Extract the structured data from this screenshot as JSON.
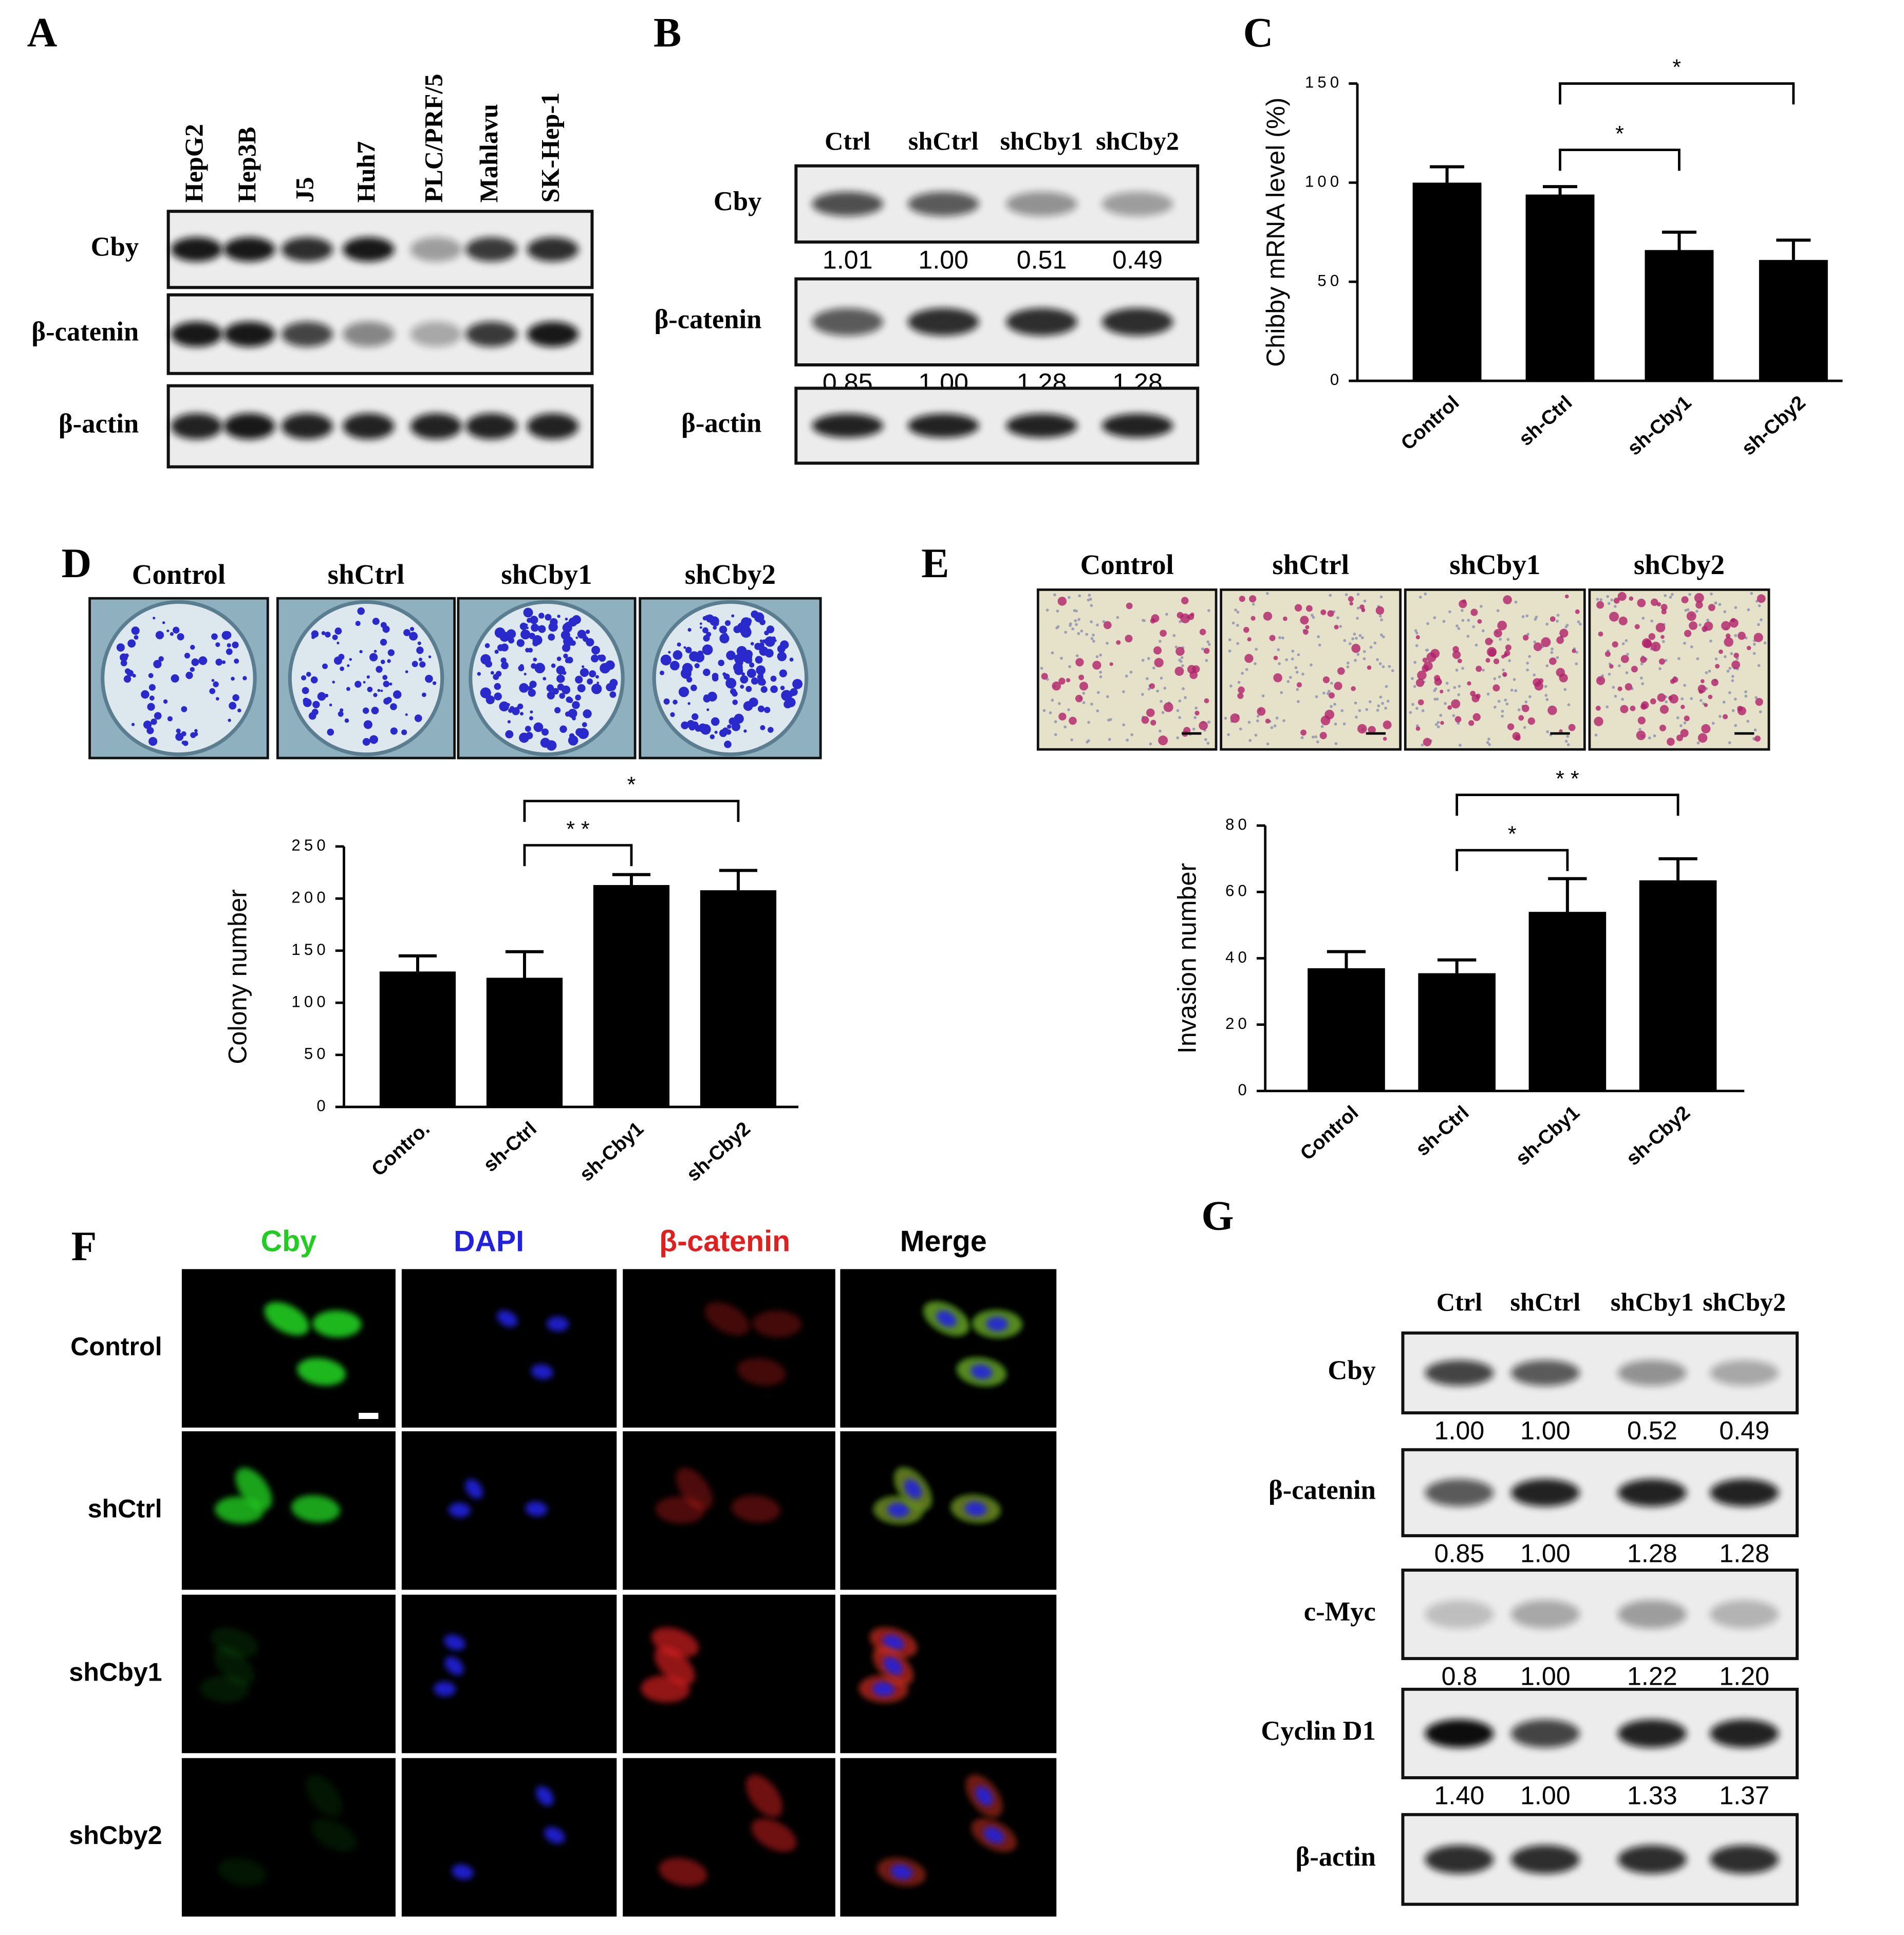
{
  "figure": {
    "A": {
      "label": "A",
      "lanes": [
        "HepG2",
        "Hep3B",
        "J5",
        "Huh7",
        "PLC/PRF/5",
        "Mahlavu",
        "SK-Hep-1"
      ],
      "rows": [
        "Cby",
        "β-catenin",
        "β-actin"
      ]
    },
    "B": {
      "label": "B",
      "lanes": [
        "Ctrl",
        "shCtrl",
        "shCby1",
        "shCby2"
      ],
      "rows": [
        {
          "name": "Cby",
          "quant": [
            "1.01",
            "1.00",
            "0.51",
            "0.49"
          ]
        },
        {
          "name": "β-catenin",
          "quant": [
            "0.85",
            "1.00",
            "1.28",
            "1.28"
          ]
        },
        {
          "name": "β-actin"
        }
      ]
    },
    "C": {
      "label": "C"
    },
    "D": {
      "label": "D",
      "conditions": [
        "Control",
        "shCtrl",
        "shCby1",
        "shCby2"
      ]
    },
    "E": {
      "label": "E",
      "conditions": [
        "Control",
        "shCtrl",
        "shCby1",
        "shCby2"
      ]
    },
    "F": {
      "label": "F",
      "channels": [
        {
          "name": "Cby",
          "color": "#22cc22"
        },
        {
          "name": "DAPI",
          "color": "#2222dd"
        },
        {
          "name": "β-catenin",
          "color": "#e02020"
        },
        {
          "name": "Merge",
          "color": "#000000"
        }
      ],
      "rows": [
        "Control",
        "shCtrl",
        "shCby1",
        "shCby2"
      ]
    },
    "G": {
      "label": "G",
      "lanes": [
        "Ctrl",
        "shCtrl",
        "shCby1",
        "shCby2"
      ],
      "rows": [
        {
          "name": "Cby",
          "quant": [
            "1.00",
            "1.00",
            "0.52",
            "0.49"
          ]
        },
        {
          "name": "β-catenin",
          "quant": [
            "0.85",
            "1.00",
            "1.28",
            "1.28"
          ]
        },
        {
          "name": "c-Myc",
          "quant": [
            "0.8",
            "1.00",
            "1.22",
            "1.20"
          ]
        },
        {
          "name": "Cyclin D1",
          "quant": [
            "1.40",
            "1.00",
            "1.33",
            "1.37"
          ]
        },
        {
          "name": "β-actin"
        }
      ]
    }
  },
  "chart_data": [
    {
      "type": "bar",
      "ylabel": "Chibby mRNA level (%)",
      "categories": [
        "Control",
        "sh-Ctrl",
        "sh-Cby1",
        "sh-Cby2"
      ],
      "values": [
        100,
        94,
        66,
        61
      ],
      "errors": [
        8,
        4,
        9,
        10
      ],
      "color": "#000000",
      "ylim": [
        0,
        150
      ],
      "yticks": [
        0,
        50,
        100,
        150
      ],
      "significance": [
        {
          "label": "*",
          "between": [
            "sh-Ctrl",
            "sh-Cby1"
          ]
        },
        {
          "label": "*",
          "between": [
            "sh-Ctrl",
            "sh-Cby2"
          ]
        }
      ]
    },
    {
      "type": "bar",
      "ylabel": "Colony number",
      "categories": [
        "Contro.",
        "sh-Ctrl",
        "sh-Cby1",
        "sh-Cby2"
      ],
      "values": [
        130,
        124,
        213,
        208
      ],
      "errors": [
        15,
        25,
        10,
        19
      ],
      "color": "#000000",
      "ylim": [
        0,
        250
      ],
      "yticks": [
        0,
        50,
        100,
        150,
        200,
        250
      ],
      "significance": [
        {
          "label": "* *",
          "between": [
            "sh-Ctrl",
            "sh-Cby1"
          ]
        },
        {
          "label": "*",
          "between": [
            "sh-Ctrl",
            "sh-Cby2"
          ]
        }
      ]
    },
    {
      "type": "bar",
      "ylabel": "Invasion number",
      "categories": [
        "Control",
        "sh-Ctrl",
        "sh-Cby1",
        "sh-Cby2"
      ],
      "values": [
        37,
        35.5,
        54,
        63.5
      ],
      "errors": [
        5,
        4,
        10,
        6.5
      ],
      "color": "#000000",
      "ylim": [
        0,
        80
      ],
      "yticks": [
        0,
        20,
        40,
        60,
        80
      ],
      "significance": [
        {
          "label": "*",
          "between": [
            "sh-Ctrl",
            "sh-Cby1"
          ]
        },
        {
          "label": "* *",
          "between": [
            "sh-Ctrl",
            "sh-Cby2"
          ]
        }
      ]
    }
  ]
}
